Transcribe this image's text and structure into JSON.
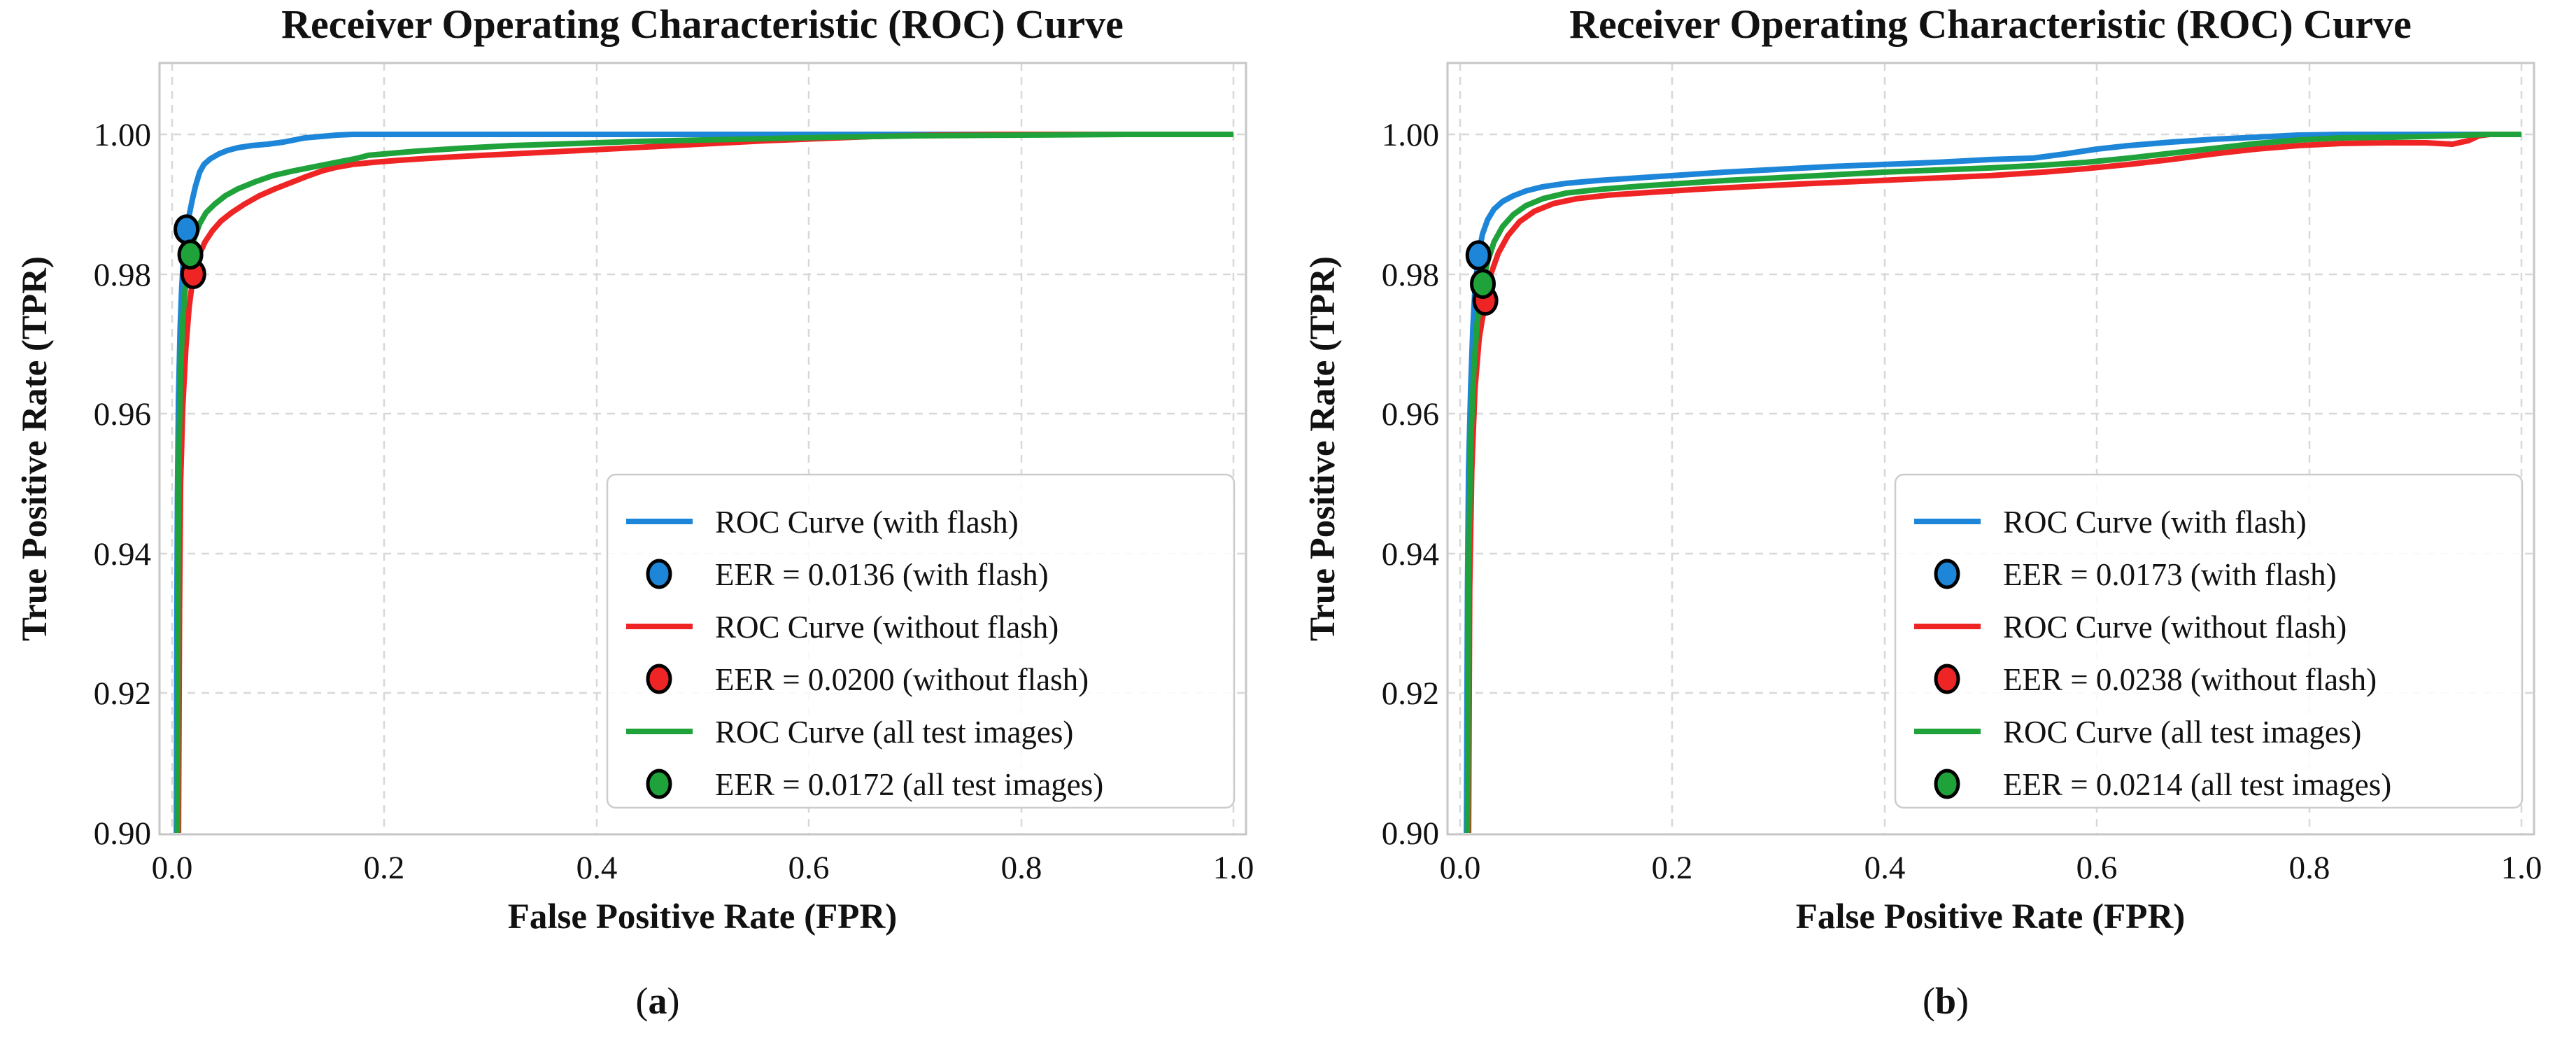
{
  "chart_data": [
    {
      "type": "line",
      "panel": "a",
      "title": "Receiver Operating Characteristic (ROC) Curve",
      "xlabel": "False Positive Rate (FPR)",
      "ylabel": "True Positive Rate (TPR)",
      "xlim": [
        0.0,
        1.0
      ],
      "ylim": [
        0.9,
        1.01
      ],
      "grid": "dashed",
      "legend_position": "lower right",
      "x_ticks": [
        0.0,
        0.2,
        0.4,
        0.6,
        0.8,
        1.0
      ],
      "y_ticks": [
        1.0,
        0.98,
        0.96,
        0.94,
        0.92,
        0.9
      ],
      "x_tick_labels": [
        "0.0",
        "0.2",
        "0.4",
        "0.6",
        "0.8",
        "1.0"
      ],
      "y_tick_labels": [
        "1.00",
        "0.98",
        "0.96",
        "0.94",
        "0.92",
        "0.90"
      ],
      "caption": {
        "open": "(",
        "letter": "a",
        "close": ")"
      },
      "series": [
        {
          "name": "ROC Curve (with flash)",
          "color": "#1d86d8",
          "points": [
            [
              0.004,
              0.9
            ],
            [
              0.0045,
              0.93
            ],
            [
              0.005,
              0.948
            ],
            [
              0.006,
              0.962
            ],
            [
              0.0075,
              0.972
            ],
            [
              0.009,
              0.978
            ],
            [
              0.011,
              0.9832
            ],
            [
              0.0136,
              0.9864
            ],
            [
              0.016,
              0.9884
            ],
            [
              0.019,
              0.9906
            ],
            [
              0.022,
              0.9926
            ],
            [
              0.026,
              0.9946
            ],
            [
              0.03,
              0.9957
            ],
            [
              0.036,
              0.9965
            ],
            [
              0.044,
              0.9972
            ],
            [
              0.052,
              0.9977
            ],
            [
              0.062,
              0.9981
            ],
            [
              0.075,
              0.9984
            ],
            [
              0.09,
              0.9986
            ],
            [
              0.105,
              0.9989
            ],
            [
              0.115,
              0.9992
            ],
            [
              0.125,
              0.9995
            ],
            [
              0.14,
              0.9997
            ],
            [
              0.155,
              0.9999
            ],
            [
              0.17,
              1.0
            ],
            [
              1.0,
              1.0
            ]
          ]
        },
        {
          "name": "ROC Curve (without flash)",
          "color": "#ef2525",
          "points": [
            [
              0.006,
              0.9
            ],
            [
              0.007,
              0.932
            ],
            [
              0.008,
              0.95
            ],
            [
              0.01,
              0.961
            ],
            [
              0.013,
              0.9695
            ],
            [
              0.016,
              0.9752
            ],
            [
              0.02,
              0.98
            ],
            [
              0.025,
              0.9826
            ],
            [
              0.031,
              0.9846
            ],
            [
              0.038,
              0.9862
            ],
            [
              0.046,
              0.9876
            ],
            [
              0.056,
              0.9888
            ],
            [
              0.068,
              0.99
            ],
            [
              0.082,
              0.9912
            ],
            [
              0.097,
              0.9922
            ],
            [
              0.112,
              0.9931
            ],
            [
              0.127,
              0.994
            ],
            [
              0.142,
              0.9948
            ],
            [
              0.155,
              0.9953
            ],
            [
              0.17,
              0.9957
            ],
            [
              0.19,
              0.996
            ],
            [
              0.215,
              0.9963
            ],
            [
              0.245,
              0.9966
            ],
            [
              0.28,
              0.9969
            ],
            [
              0.32,
              0.9972
            ],
            [
              0.36,
              0.9975
            ],
            [
              0.41,
              0.9979
            ],
            [
              0.46,
              0.9983
            ],
            [
              0.51,
              0.9987
            ],
            [
              0.56,
              0.9991
            ],
            [
              0.61,
              0.9994
            ],
            [
              0.66,
              0.9997
            ],
            [
              0.72,
              0.9999
            ],
            [
              0.78,
              1.0
            ],
            [
              1.0,
              1.0
            ]
          ]
        },
        {
          "name": "ROC Curve (all test images)",
          "color": "#1fa23a",
          "points": [
            [
              0.005,
              0.9
            ],
            [
              0.0055,
              0.935
            ],
            [
              0.0065,
              0.955
            ],
            [
              0.008,
              0.966
            ],
            [
              0.01,
              0.9735
            ],
            [
              0.013,
              0.979
            ],
            [
              0.0172,
              0.9828
            ],
            [
              0.021,
              0.9852
            ],
            [
              0.026,
              0.9872
            ],
            [
              0.032,
              0.9888
            ],
            [
              0.04,
              0.99
            ],
            [
              0.05,
              0.9912
            ],
            [
              0.062,
              0.9922
            ],
            [
              0.078,
              0.9932
            ],
            [
              0.095,
              0.9941
            ],
            [
              0.115,
              0.9948
            ],
            [
              0.135,
              0.9954
            ],
            [
              0.155,
              0.996
            ],
            [
              0.175,
              0.9966
            ],
            [
              0.185,
              0.997
            ],
            [
              0.2,
              0.9972
            ],
            [
              0.23,
              0.9976
            ],
            [
              0.27,
              0.998
            ],
            [
              0.32,
              0.9984
            ],
            [
              0.38,
              0.9987
            ],
            [
              0.44,
              0.999
            ],
            [
              0.5,
              0.9992
            ],
            [
              0.56,
              0.9994
            ],
            [
              0.62,
              0.9996
            ],
            [
              0.7,
              0.9998
            ],
            [
              0.8,
              0.9999
            ],
            [
              0.9,
              1.0
            ],
            [
              1.0,
              1.0
            ]
          ]
        }
      ],
      "eer_points": [
        {
          "name": "EER = 0.0136 (with flash)",
          "color": "#1d86d8",
          "x": 0.0136,
          "y": 0.9864
        },
        {
          "name": "EER = 0.0200 (without flash)",
          "color": "#ef2525",
          "x": 0.02,
          "y": 0.98
        },
        {
          "name": "EER = 0.0172 (all test images)",
          "color": "#1fa23a",
          "x": 0.0172,
          "y": 0.9828
        }
      ]
    },
    {
      "type": "line",
      "panel": "b",
      "title": "Receiver Operating Characteristic (ROC) Curve",
      "xlabel": "False Positive Rate (FPR)",
      "ylabel": "True Positive Rate (TPR)",
      "xlim": [
        0.0,
        1.0
      ],
      "ylim": [
        0.9,
        1.01
      ],
      "grid": "dashed",
      "legend_position": "lower right",
      "x_ticks": [
        0.0,
        0.2,
        0.4,
        0.6,
        0.8,
        1.0
      ],
      "y_ticks": [
        1.0,
        0.98,
        0.96,
        0.94,
        0.92,
        0.9
      ],
      "x_tick_labels": [
        "0.0",
        "0.2",
        "0.4",
        "0.6",
        "0.8",
        "1.0"
      ],
      "y_tick_labels": [
        "1.00",
        "0.98",
        "0.96",
        "0.94",
        "0.92",
        "0.90"
      ],
      "caption": {
        "open": "(",
        "letter": "b",
        "close": ")"
      },
      "series": [
        {
          "name": "ROC Curve (with flash)",
          "color": "#1d86d8",
          "points": [
            [
              0.006,
              0.9
            ],
            [
              0.007,
              0.935
            ],
            [
              0.008,
              0.952
            ],
            [
              0.01,
              0.964
            ],
            [
              0.012,
              0.9722
            ],
            [
              0.014,
              0.9778
            ],
            [
              0.0173,
              0.9827
            ],
            [
              0.021,
              0.9857
            ],
            [
              0.026,
              0.9878
            ],
            [
              0.032,
              0.9893
            ],
            [
              0.04,
              0.9904
            ],
            [
              0.05,
              0.9912
            ],
            [
              0.062,
              0.9919
            ],
            [
              0.078,
              0.9925
            ],
            [
              0.1,
              0.993
            ],
            [
              0.13,
              0.9934
            ],
            [
              0.17,
              0.9938
            ],
            [
              0.21,
              0.9942
            ],
            [
              0.25,
              0.9946
            ],
            [
              0.3,
              0.995
            ],
            [
              0.35,
              0.9954
            ],
            [
              0.4,
              0.9957
            ],
            [
              0.45,
              0.996
            ],
            [
              0.5,
              0.9964
            ],
            [
              0.54,
              0.9966
            ],
            [
              0.57,
              0.9972
            ],
            [
              0.6,
              0.9979
            ],
            [
              0.63,
              0.9984
            ],
            [
              0.67,
              0.9989
            ],
            [
              0.71,
              0.9993
            ],
            [
              0.75,
              0.9996
            ],
            [
              0.79,
              0.9999
            ],
            [
              0.83,
              1.0
            ],
            [
              1.0,
              1.0
            ]
          ]
        },
        {
          "name": "ROC Curve (without flash)",
          "color": "#ef2525",
          "points": [
            [
              0.008,
              0.9
            ],
            [
              0.009,
              0.935
            ],
            [
              0.011,
              0.952
            ],
            [
              0.014,
              0.9635
            ],
            [
              0.018,
              0.9708
            ],
            [
              0.0238,
              0.9762
            ],
            [
              0.029,
              0.98
            ],
            [
              0.036,
              0.983
            ],
            [
              0.045,
              0.9855
            ],
            [
              0.056,
              0.9875
            ],
            [
              0.07,
              0.989
            ],
            [
              0.088,
              0.9901
            ],
            [
              0.11,
              0.9908
            ],
            [
              0.14,
              0.9913
            ],
            [
              0.18,
              0.9917
            ],
            [
              0.22,
              0.9921
            ],
            [
              0.27,
              0.9925
            ],
            [
              0.32,
              0.9929
            ],
            [
              0.38,
              0.9933
            ],
            [
              0.44,
              0.9937
            ],
            [
              0.5,
              0.9941
            ],
            [
              0.55,
              0.9946
            ],
            [
              0.59,
              0.9951
            ],
            [
              0.63,
              0.9957
            ],
            [
              0.67,
              0.9964
            ],
            [
              0.71,
              0.9972
            ],
            [
              0.75,
              0.9979
            ],
            [
              0.79,
              0.9984
            ],
            [
              0.83,
              0.9987
            ],
            [
              0.87,
              0.9988
            ],
            [
              0.91,
              0.9988
            ],
            [
              0.935,
              0.9986
            ],
            [
              0.95,
              0.9991
            ],
            [
              0.96,
              0.9998
            ],
            [
              0.97,
              1.0
            ],
            [
              1.0,
              1.0
            ]
          ]
        },
        {
          "name": "ROC Curve (all test images)",
          "color": "#1fa23a",
          "points": [
            [
              0.007,
              0.9
            ],
            [
              0.008,
              0.938
            ],
            [
              0.01,
              0.956
            ],
            [
              0.013,
              0.9665
            ],
            [
              0.016,
              0.973
            ],
            [
              0.0214,
              0.9786
            ],
            [
              0.026,
              0.9818
            ],
            [
              0.032,
              0.9846
            ],
            [
              0.04,
              0.9868
            ],
            [
              0.05,
              0.9885
            ],
            [
              0.062,
              0.9898
            ],
            [
              0.078,
              0.9908
            ],
            [
              0.1,
              0.9916
            ],
            [
              0.13,
              0.9921
            ],
            [
              0.17,
              0.9926
            ],
            [
              0.21,
              0.993
            ],
            [
              0.25,
              0.9934
            ],
            [
              0.3,
              0.9938
            ],
            [
              0.35,
              0.9942
            ],
            [
              0.4,
              0.9946
            ],
            [
              0.45,
              0.9949
            ],
            [
              0.5,
              0.9952
            ],
            [
              0.55,
              0.9956
            ],
            [
              0.59,
              0.996
            ],
            [
              0.63,
              0.9966
            ],
            [
              0.67,
              0.9973
            ],
            [
              0.71,
              0.998
            ],
            [
              0.75,
              0.9987
            ],
            [
              0.79,
              0.9992
            ],
            [
              0.83,
              0.9995
            ],
            [
              0.88,
              0.9996
            ],
            [
              0.93,
              0.9998
            ],
            [
              0.97,
              1.0
            ],
            [
              1.0,
              1.0
            ]
          ]
        }
      ],
      "eer_points": [
        {
          "name": "EER = 0.0173 (with flash)",
          "color": "#1d86d8",
          "x": 0.0173,
          "y": 0.9827
        },
        {
          "name": "EER = 0.0238 (without flash)",
          "color": "#ef2525",
          "x": 0.0238,
          "y": 0.9762
        },
        {
          "name": "EER = 0.0214 (all test images)",
          "color": "#1fa23a",
          "x": 0.0214,
          "y": 0.9786
        }
      ]
    }
  ]
}
